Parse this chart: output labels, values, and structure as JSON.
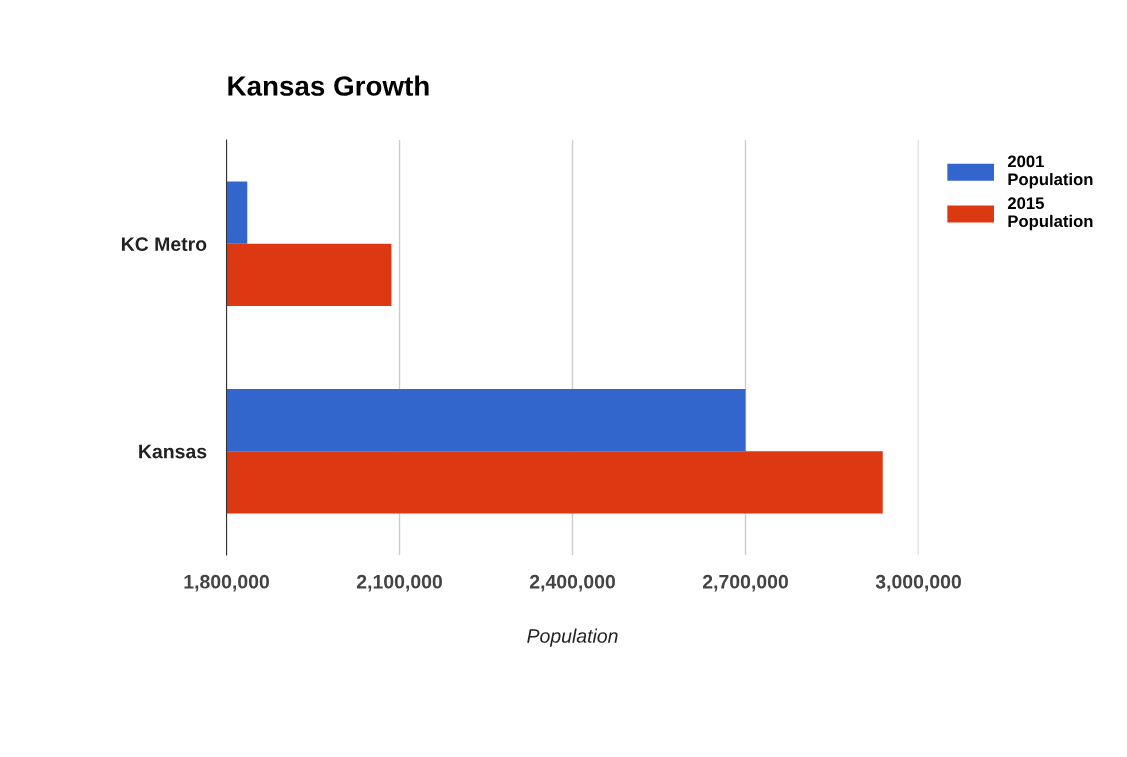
{
  "chart_data": {
    "type": "bar",
    "orientation": "horizontal",
    "title": "Kansas Growth",
    "xlabel": "Population",
    "categories": [
      "KC Metro",
      "Kansas"
    ],
    "series": [
      {
        "name": "2001 Population",
        "color": "#3366cc",
        "values": [
          1836000,
          2700000
        ]
      },
      {
        "name": "2015 Population",
        "color": "#dc3912",
        "values": [
          2086000,
          2938000
        ]
      }
    ],
    "xlim": [
      1800000,
      3000000
    ],
    "xticks": [
      {
        "value": 1800000,
        "label": "1,800,000"
      },
      {
        "value": 2100000,
        "label": "2,100,000"
      },
      {
        "value": 2400000,
        "label": "2,400,000"
      },
      {
        "value": 2700000,
        "label": "2,700,000"
      },
      {
        "value": 3000000,
        "label": "3,000,000"
      }
    ],
    "grid": "x",
    "legend": "top right"
  }
}
